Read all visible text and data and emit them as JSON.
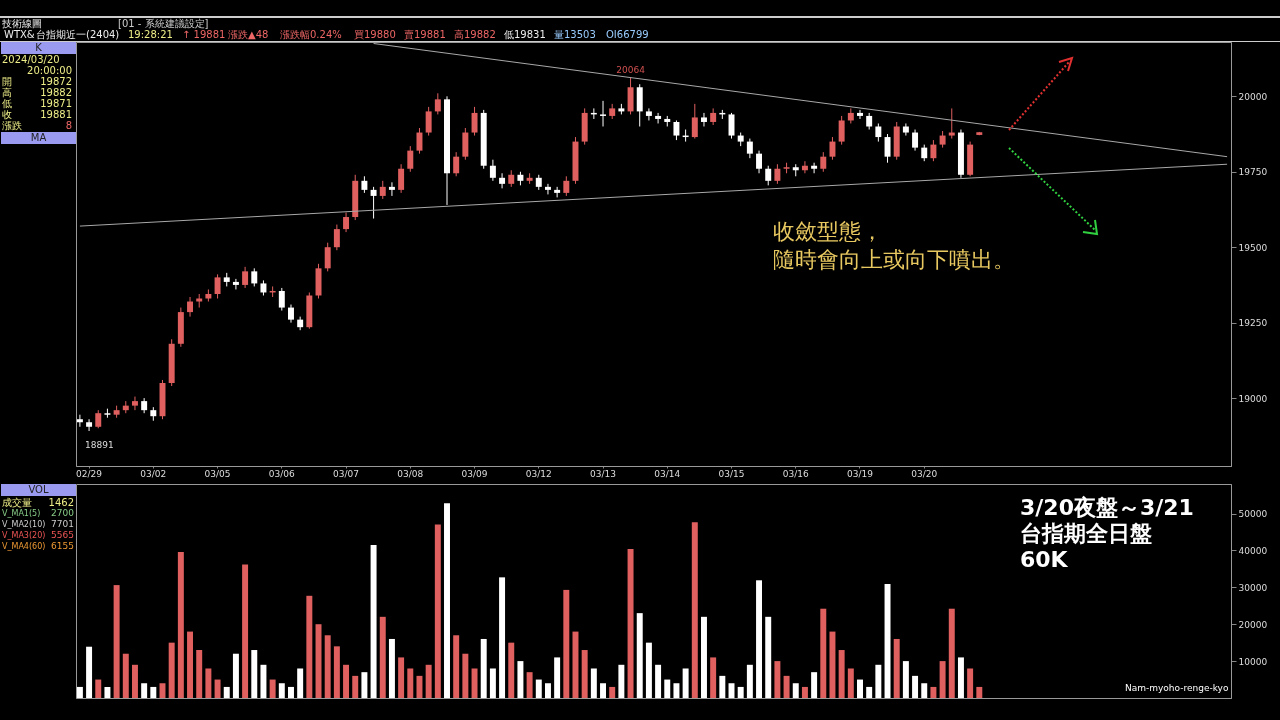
{
  "chart_data": [
    {
      "type": "candlestick",
      "categories": [
        null,
        "02/29",
        null,
        null,
        null,
        null,
        null,
        null,
        "03/02",
        null,
        null,
        null,
        null,
        null,
        null,
        "03/05",
        null,
        null,
        null,
        null,
        null,
        null,
        "03/06",
        null,
        null,
        null,
        null,
        null,
        null,
        "03/07",
        null,
        null,
        null,
        null,
        null,
        null,
        "03/08",
        null,
        null,
        null,
        null,
        null,
        null,
        "03/09",
        null,
        null,
        null,
        null,
        null,
        null,
        "03/12",
        null,
        null,
        null,
        null,
        null,
        null,
        "03/13",
        null,
        null,
        null,
        null,
        null,
        null,
        "03/14",
        null,
        null,
        null,
        null,
        null,
        null,
        "03/15",
        null,
        null,
        null,
        null,
        null,
        null,
        "03/16",
        null,
        null,
        null,
        null,
        null,
        null,
        "03/19",
        null,
        null,
        null,
        null,
        null,
        null,
        "03/20",
        null,
        null,
        null,
        null,
        null,
        null,
        null,
        null,
        null,
        null,
        null,
        null,
        null,
        null,
        null,
        null,
        null,
        null,
        null,
        null,
        null,
        null,
        null,
        null,
        null,
        null,
        null,
        null,
        null,
        null,
        null,
        null,
        null
      ],
      "ohlc": [
        [
          18930,
          18945,
          18905,
          18920
        ],
        [
          18920,
          18930,
          18891,
          18905
        ],
        [
          18905,
          18960,
          18900,
          18950
        ],
        [
          18950,
          18965,
          18935,
          18945
        ],
        [
          18945,
          18975,
          18935,
          18960
        ],
        [
          18960,
          18990,
          18950,
          18975
        ],
        [
          18975,
          19005,
          18960,
          18990
        ],
        [
          18990,
          19000,
          18950,
          18960
        ],
        [
          18960,
          18970,
          18925,
          18940
        ],
        [
          18940,
          19060,
          18930,
          19050
        ],
        [
          19050,
          19195,
          19040,
          19180
        ],
        [
          19180,
          19300,
          19170,
          19285
        ],
        [
          19285,
          19335,
          19270,
          19320
        ],
        [
          19320,
          19345,
          19300,
          19330
        ],
        [
          19330,
          19360,
          19320,
          19345
        ],
        [
          19345,
          19410,
          19330,
          19400
        ],
        [
          19400,
          19415,
          19370,
          19385
        ],
        [
          19385,
          19395,
          19360,
          19375
        ],
        [
          19375,
          19435,
          19365,
          19420
        ],
        [
          19420,
          19430,
          19370,
          19380
        ],
        [
          19380,
          19390,
          19340,
          19350
        ],
        [
          19350,
          19370,
          19335,
          19355
        ],
        [
          19355,
          19365,
          19290,
          19300
        ],
        [
          19300,
          19310,
          19250,
          19260
        ],
        [
          19260,
          19270,
          19225,
          19235
        ],
        [
          19235,
          19350,
          19230,
          19340
        ],
        [
          19340,
          19445,
          19330,
          19430
        ],
        [
          19430,
          19515,
          19420,
          19500
        ],
        [
          19500,
          19575,
          19490,
          19560
        ],
        [
          19560,
          19615,
          19550,
          19600
        ],
        [
          19600,
          19740,
          19590,
          19720
        ],
        [
          19720,
          19735,
          19680,
          19690
        ],
        [
          19690,
          19700,
          19595,
          19670
        ],
        [
          19670,
          19720,
          19660,
          19700
        ],
        [
          19700,
          19715,
          19670,
          19690
        ],
        [
          19690,
          19775,
          19680,
          19760
        ],
        [
          19760,
          19835,
          19750,
          19820
        ],
        [
          19820,
          19895,
          19810,
          19880
        ],
        [
          19880,
          19965,
          19870,
          19950
        ],
        [
          19950,
          20010,
          19940,
          19990
        ],
        [
          19990,
          20000,
          19640,
          19745
        ],
        [
          19745,
          19815,
          19735,
          19800
        ],
        [
          19800,
          19895,
          19790,
          19880
        ],
        [
          19880,
          19965,
          19870,
          19945
        ],
        [
          19945,
          19955,
          19760,
          19770
        ],
        [
          19770,
          19790,
          19720,
          19730
        ],
        [
          19730,
          19745,
          19695,
          19710
        ],
        [
          19710,
          19755,
          19700,
          19740
        ],
        [
          19740,
          19750,
          19705,
          19720
        ],
        [
          19720,
          19745,
          19710,
          19730
        ],
        [
          19730,
          19740,
          19690,
          19700
        ],
        [
          19700,
          19710,
          19675,
          19690
        ],
        [
          19690,
          19700,
          19665,
          19680
        ],
        [
          19680,
          19735,
          19670,
          19720
        ],
        [
          19720,
          19865,
          19710,
          19850
        ],
        [
          19850,
          19960,
          19840,
          19945
        ],
        [
          19945,
          19960,
          19925,
          19940
        ],
        [
          19940,
          19985,
          19900,
          19935
        ],
        [
          19935,
          19975,
          19925,
          19960
        ],
        [
          19960,
          19975,
          19940,
          19950
        ],
        [
          19950,
          20064,
          19940,
          20030
        ],
        [
          20030,
          20040,
          19900,
          19950
        ],
        [
          19950,
          19960,
          19920,
          19935
        ],
        [
          19935,
          19945,
          19910,
          19925
        ],
        [
          19925,
          19935,
          19900,
          19915
        ],
        [
          19915,
          19920,
          19855,
          19870
        ],
        [
          19870,
          19890,
          19850,
          19865
        ],
        [
          19865,
          19975,
          19860,
          19930
        ],
        [
          19930,
          19945,
          19900,
          19915
        ],
        [
          19915,
          19960,
          19905,
          19945
        ],
        [
          19945,
          19955,
          19925,
          19940
        ],
        [
          19940,
          19945,
          19860,
          19870
        ],
        [
          19870,
          19880,
          19835,
          19850
        ],
        [
          19850,
          19860,
          19795,
          19810
        ],
        [
          19810,
          19820,
          19745,
          19760
        ],
        [
          19760,
          19770,
          19705,
          19720
        ],
        [
          19720,
          19775,
          19710,
          19760
        ],
        [
          19760,
          19780,
          19745,
          19765
        ],
        [
          19765,
          19775,
          19735,
          19755
        ],
        [
          19755,
          19785,
          19745,
          19770
        ],
        [
          19770,
          19780,
          19745,
          19760
        ],
        [
          19760,
          19815,
          19750,
          19800
        ],
        [
          19800,
          19865,
          19790,
          19850
        ],
        [
          19850,
          19935,
          19840,
          19920
        ],
        [
          19920,
          19960,
          19910,
          19945
        ],
        [
          19945,
          19955,
          19925,
          19935
        ],
        [
          19935,
          19945,
          19890,
          19900
        ],
        [
          19900,
          19910,
          19850,
          19865
        ],
        [
          19865,
          19875,
          19780,
          19800
        ],
        [
          19800,
          19915,
          19790,
          19900
        ],
        [
          19900,
          19910,
          19870,
          19880
        ],
        [
          19880,
          19890,
          19820,
          19830
        ],
        [
          19830,
          19840,
          19785,
          19795
        ],
        [
          19795,
          19855,
          19785,
          19840
        ],
        [
          19840,
          19885,
          19830,
          19870
        ],
        [
          19870,
          19960,
          19860,
          19880
        ],
        [
          19880,
          19890,
          19730,
          19740
        ],
        [
          19740,
          19850,
          19735,
          19840
        ],
        [
          19872,
          19882,
          19871,
          19881
        ],
        null,
        null,
        null,
        null,
        null,
        null,
        null,
        null,
        null,
        null,
        null,
        null,
        null,
        null,
        null,
        null,
        null,
        null,
        null,
        null,
        null,
        null,
        null,
        null,
        null,
        null,
        null
      ],
      "colors": [
        "#ffffff",
        "#ffffff",
        "#e06060",
        "#ffffff",
        "#e06060",
        "#e06060",
        "#e06060",
        "#ffffff",
        "#ffffff",
        "#e06060",
        "#e06060",
        "#e06060",
        "#e06060",
        "#e06060",
        "#e06060",
        "#e06060",
        "#ffffff",
        "#ffffff",
        "#e06060",
        "#ffffff",
        "#ffffff",
        "#e06060",
        "#ffffff",
        "#ffffff",
        "#ffffff",
        "#e06060",
        "#e06060",
        "#e06060",
        "#e06060",
        "#e06060",
        "#e06060",
        "#ffffff",
        "#ffffff",
        "#e06060",
        "#ffffff",
        "#e06060",
        "#e06060",
        "#e06060",
        "#e06060",
        "#e06060",
        "#ffffff",
        "#e06060",
        "#e06060",
        "#e06060",
        "#ffffff",
        "#ffffff",
        "#ffffff",
        "#e06060",
        "#ffffff",
        "#e06060",
        "#ffffff",
        "#ffffff",
        "#ffffff",
        "#e06060",
        "#e06060",
        "#e06060",
        "#ffffff",
        "#ffffff",
        "#e06060",
        "#ffffff",
        "#e06060",
        "#ffffff",
        "#ffffff",
        "#ffffff",
        "#ffffff",
        "#ffffff",
        "#ffffff",
        "#e06060",
        "#ffffff",
        "#e06060",
        "#ffffff",
        "#ffffff",
        "#ffffff",
        "#ffffff",
        "#ffffff",
        "#ffffff",
        "#e06060",
        "#e06060",
        "#ffffff",
        "#e06060",
        "#ffffff",
        "#e06060",
        "#e06060",
        "#e06060",
        "#e06060",
        "#ffffff",
        "#ffffff",
        "#ffffff",
        "#ffffff",
        "#e06060",
        "#ffffff",
        "#ffffff",
        "#ffffff",
        "#e06060",
        "#e06060",
        "#e06060",
        "#ffffff",
        "#e06060",
        "#e06060",
        null,
        null,
        null,
        null,
        null,
        null,
        null,
        null,
        null,
        null,
        null,
        null,
        null,
        null,
        null,
        null,
        null,
        null,
        null,
        null,
        null,
        null,
        null,
        null,
        null,
        null,
        null
      ],
      "series": [
        {
          "type": "line",
          "color": "#a8a8a8",
          "values": [
            null,
            null,
            null,
            null,
            null,
            null,
            null,
            null,
            null,
            null,
            null,
            null,
            null,
            null,
            null,
            null,
            null,
            null,
            null,
            null,
            null,
            null,
            null,
            null,
            null,
            null,
            null,
            null,
            null,
            null,
            null,
            null,
            20175,
            null,
            null,
            null,
            null,
            null,
            null,
            null,
            null,
            null,
            null,
            null,
            null,
            null,
            null,
            null,
            null,
            null,
            null,
            null,
            null,
            null,
            null,
            null,
            null,
            null,
            null,
            null,
            null,
            null,
            null,
            null,
            null,
            null,
            null,
            null,
            null,
            null,
            null,
            null,
            null,
            null,
            null,
            null,
            null,
            null,
            null,
            null,
            null,
            null,
            null,
            null,
            null,
            null,
            null,
            null,
            null,
            null,
            null,
            null,
            null,
            null,
            null,
            null,
            null,
            null,
            null,
            null,
            null,
            null,
            null,
            null,
            null,
            null,
            null,
            null,
            null,
            null,
            null,
            null,
            null,
            null,
            null,
            null,
            null,
            null,
            null,
            null,
            null,
            null,
            null,
            null,
            null,
            19800
          ]
        },
        {
          "type": "line",
          "color": "#a8a8a8",
          "values": [
            19570,
            null,
            null,
            null,
            null,
            null,
            null,
            null,
            null,
            null,
            null,
            null,
            null,
            null,
            null,
            null,
            null,
            null,
            null,
            null,
            null,
            null,
            null,
            null,
            null,
            null,
            null,
            null,
            null,
            null,
            null,
            null,
            null,
            null,
            null,
            null,
            null,
            null,
            null,
            null,
            null,
            null,
            null,
            null,
            null,
            null,
            null,
            null,
            null,
            null,
            null,
            null,
            null,
            null,
            null,
            null,
            null,
            null,
            null,
            null,
            null,
            null,
            null,
            null,
            null,
            null,
            null,
            null,
            null,
            null,
            null,
            null,
            null,
            null,
            null,
            null,
            null,
            null,
            null,
            null,
            null,
            null,
            null,
            null,
            null,
            null,
            null,
            null,
            null,
            null,
            null,
            null,
            null,
            null,
            null,
            null,
            null,
            null,
            null,
            null,
            null,
            null,
            null,
            null,
            null,
            null,
            null,
            null,
            null,
            null,
            null,
            null,
            null,
            null,
            null,
            null,
            null,
            null,
            null,
            null,
            null,
            null,
            null,
            null,
            null,
            19775
          ]
        }
      ],
      "ylim": [
        18775,
        20180
      ],
      "yticks": [
        19000,
        19250,
        19500,
        19750,
        20000
      ],
      "annotations": [
        "技術線圖",
        "[01 - 系統建議設定]",
        "WTX&",
        "台指期近一(2404)",
        "19:28:21",
        "↑ 19881",
        "漲跌▲48",
        "漲跌幅0.24%",
        "買19880",
        "賣19881",
        "高19882",
        "低19831",
        "量13503",
        "OI66799",
        "K",
        "2024/03/20",
        "20:00:00",
        "開",
        "19872",
        "高",
        "19882",
        "低",
        "19871",
        "收",
        "19881",
        "漲跌",
        "8",
        "MA",
        "收斂型態，",
        "隨時會向上或向下噴出。",
        {
          "text": "20064",
          "y": 20064
        },
        {
          "text": "18891",
          "y": 18891
        }
      ]
    },
    {
      "type": "bar",
      "title": "3/20夜盤～3/21\n台指期全日盤\n60K",
      "categories": [
        null,
        null,
        null,
        null,
        null,
        null,
        null,
        null,
        null,
        null,
        null,
        null,
        null,
        null,
        null,
        null,
        null,
        null,
        null,
        null,
        null,
        null,
        null,
        null,
        null,
        null,
        null,
        null,
        null,
        null,
        null,
        null,
        null,
        null,
        null,
        null,
        null,
        null,
        null,
        null,
        null,
        null,
        null,
        null,
        null,
        null,
        null,
        null,
        null,
        null,
        null,
        null,
        null,
        null,
        null,
        null,
        null,
        null,
        null,
        null,
        null,
        null,
        null,
        null,
        null,
        null,
        null,
        null,
        null,
        null,
        null,
        null,
        null,
        null,
        null,
        null,
        null,
        null,
        null,
        null,
        null,
        null,
        null,
        null,
        null,
        null,
        null,
        null,
        null,
        null,
        null,
        null,
        null,
        null,
        null,
        null,
        null,
        null,
        null,
        null,
        null,
        null,
        null,
        null,
        null,
        null,
        null,
        null,
        null,
        null,
        null,
        null,
        null,
        null,
        null,
        null,
        null,
        null,
        null,
        null,
        null,
        null,
        null,
        null,
        null,
        null
      ],
      "values": [
        3000,
        13900,
        5000,
        3000,
        30600,
        12000,
        9000,
        4000,
        3000,
        4000,
        15000,
        39600,
        18000,
        13000,
        8000,
        5000,
        3000,
        12000,
        36200,
        13000,
        9000,
        5000,
        4000,
        3000,
        8000,
        27700,
        20000,
        17000,
        14000,
        9000,
        6000,
        7000,
        41500,
        22000,
        16000,
        11000,
        8000,
        6000,
        9000,
        47000,
        52800,
        17000,
        12000,
        8000,
        16000,
        8000,
        32700,
        15000,
        10000,
        7000,
        5000,
        4000,
        11000,
        29300,
        18000,
        13000,
        8000,
        4000,
        3000,
        9000,
        40400,
        23000,
        15000,
        9000,
        5000,
        4000,
        8000,
        47600,
        22000,
        11000,
        6000,
        4000,
        3000,
        9000,
        31900,
        22000,
        10000,
        6000,
        4000,
        3000,
        7000,
        24200,
        18000,
        13000,
        8000,
        5000,
        3000,
        9000,
        30900,
        16000,
        10000,
        6000,
        4000,
        3000,
        10000,
        24200,
        11000,
        8000,
        3000,
        null,
        null,
        null,
        null,
        null,
        null,
        null,
        null,
        null,
        null,
        null,
        null,
        null,
        null,
        null,
        null,
        null,
        null,
        null,
        null,
        null,
        null,
        null,
        null,
        null,
        null,
        null
      ],
      "colors": [
        "#ffffff",
        "#ffffff",
        "#e06060",
        "#ffffff",
        "#e06060",
        "#e06060",
        "#e06060",
        "#ffffff",
        "#ffffff",
        "#e06060",
        "#e06060",
        "#e06060",
        "#e06060",
        "#e06060",
        "#e06060",
        "#e06060",
        "#ffffff",
        "#ffffff",
        "#e06060",
        "#ffffff",
        "#ffffff",
        "#e06060",
        "#ffffff",
        "#ffffff",
        "#ffffff",
        "#e06060",
        "#e06060",
        "#e06060",
        "#e06060",
        "#e06060",
        "#e06060",
        "#ffffff",
        "#ffffff",
        "#e06060",
        "#ffffff",
        "#e06060",
        "#e06060",
        "#e06060",
        "#e06060",
        "#e06060",
        "#ffffff",
        "#e06060",
        "#e06060",
        "#e06060",
        "#ffffff",
        "#ffffff",
        "#ffffff",
        "#e06060",
        "#ffffff",
        "#e06060",
        "#ffffff",
        "#ffffff",
        "#ffffff",
        "#e06060",
        "#e06060",
        "#e06060",
        "#ffffff",
        "#ffffff",
        "#e06060",
        "#ffffff",
        "#e06060",
        "#ffffff",
        "#ffffff",
        "#ffffff",
        "#ffffff",
        "#ffffff",
        "#ffffff",
        "#e06060",
        "#ffffff",
        "#e06060",
        "#ffffff",
        "#ffffff",
        "#ffffff",
        "#ffffff",
        "#ffffff",
        "#ffffff",
        "#e06060",
        "#e06060",
        "#ffffff",
        "#e06060",
        "#ffffff",
        "#e06060",
        "#e06060",
        "#e06060",
        "#e06060",
        "#ffffff",
        "#ffffff",
        "#ffffff",
        "#ffffff",
        "#e06060",
        "#ffffff",
        "#ffffff",
        "#ffffff",
        "#e06060",
        "#e06060",
        "#e06060",
        "#ffffff",
        "#e06060",
        "#e06060",
        null,
        null,
        null,
        null,
        null,
        null,
        null,
        null,
        null,
        null,
        null,
        null,
        null,
        null,
        null,
        null,
        null,
        null,
        null,
        null,
        null,
        null,
        null,
        null,
        null,
        null,
        null
      ],
      "ylim": [
        0,
        58000
      ],
      "yticks": [
        10000,
        20000,
        30000,
        40000,
        50000
      ],
      "tick_labels": "y",
      "annotations": [
        "VOL",
        "成交量",
        "1462",
        "V_MA1(5)",
        "2700",
        "V_MA2(10)",
        "7701",
        "V_MA3(20)",
        "5565",
        "V_MA4(60)",
        "6155",
        "Nam-myoho-renge-kyo"
      ]
    }
  ]
}
